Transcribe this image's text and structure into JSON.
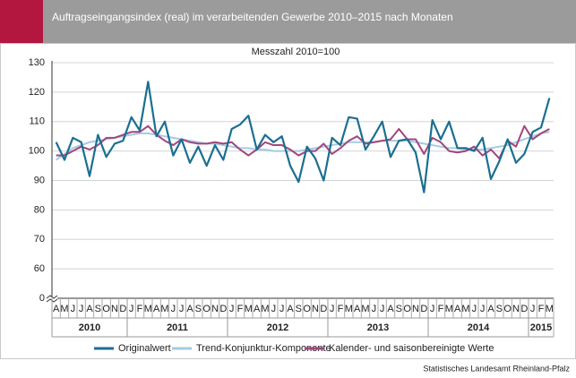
{
  "chart_data": {
    "type": "line",
    "title": "Auftragseingangsindex (real) im verarbeitenden Gewerbe 2010–2015 nach Monaten",
    "subtitle": "Messzahl 2010=100",
    "source": "Statistisches Landesamt Rheinland-Pfalz",
    "categories": [
      "A",
      "M",
      "J",
      "J",
      "A",
      "S",
      "O",
      "N",
      "D",
      "J",
      "F",
      "M",
      "A",
      "M",
      "J",
      "J",
      "A",
      "S",
      "O",
      "N",
      "D",
      "J",
      "F",
      "M",
      "A",
      "M",
      "J",
      "J",
      "A",
      "S",
      "O",
      "N",
      "D",
      "J",
      "F",
      "M",
      "A",
      "M",
      "J",
      "J",
      "A",
      "S",
      "O",
      "N",
      "D",
      "J",
      "F",
      "M",
      "A",
      "M",
      "J",
      "J",
      "A",
      "S",
      "O",
      "N",
      "D",
      "J",
      "F",
      "M"
    ],
    "years": [
      "2010",
      "2011",
      "2012",
      "2013",
      "2014",
      "2015"
    ],
    "ylim": [
      0,
      130
    ],
    "y_break": [
      0,
      50
    ],
    "yticks": [
      0,
      60,
      70,
      80,
      90,
      100,
      110,
      120,
      130
    ],
    "grid": true,
    "legend": "bottom",
    "series": [
      {
        "name": "Originalwert",
        "color": "#1b6f91",
        "values": [
          103,
          97,
          104.5,
          103,
          91.5,
          105.5,
          98,
          102.5,
          103.5,
          111.5,
          107,
          123.5,
          105,
          110,
          98.5,
          104,
          96,
          101.5,
          95,
          102,
          97,
          107.5,
          109,
          112,
          100.5,
          105.5,
          103,
          105,
          95,
          89.5,
          101.5,
          97.5,
          90,
          104.5,
          102,
          111.5,
          111,
          100.5,
          105,
          110,
          98,
          103.5,
          104,
          99.5,
          86,
          110.5,
          104,
          110,
          101,
          101,
          100,
          104.5,
          90.5,
          96.5,
          104,
          96,
          99,
          106.5,
          108,
          118
        ]
      },
      {
        "name": "Trend-Konjunktur-Komponente",
        "color": "#a3cbe2",
        "values": [
          97,
          99,
          101,
          102,
          103,
          103.5,
          104,
          104.5,
          105,
          105.5,
          106,
          106,
          105.5,
          105,
          104.5,
          104,
          103.5,
          103,
          102.5,
          102.5,
          102,
          101.5,
          101,
          101,
          100.5,
          100.5,
          100,
          100,
          100,
          100,
          100.5,
          101,
          101.5,
          102,
          102.5,
          103,
          103,
          103,
          103,
          103.5,
          103.5,
          103.5,
          103.5,
          103,
          102.5,
          102,
          101.5,
          101,
          101,
          100.5,
          100.5,
          100.5,
          101,
          101.5,
          102,
          103,
          104,
          105,
          106,
          106.5
        ]
      },
      {
        "name": "Kalender- und saisonbereinigte Werte",
        "color": "#a2457e",
        "values": [
          98.5,
          98.5,
          100,
          101.5,
          100.5,
          102,
          104.5,
          104.5,
          105.5,
          106.5,
          106.5,
          108.5,
          105.5,
          103.5,
          102,
          104,
          103,
          102.5,
          102.5,
          103,
          102.5,
          103,
          100.5,
          98.5,
          100.5,
          103,
          102,
          102,
          100.5,
          98.5,
          100,
          100,
          102.5,
          99,
          101,
          103.5,
          105,
          102.5,
          103,
          103.5,
          104,
          107.5,
          104,
          104,
          99,
          104.5,
          103,
          100,
          99.5,
          100,
          101.5,
          98.5,
          100.5,
          97.5,
          103.5,
          101.5,
          108.5,
          104,
          106,
          107.5
        ]
      }
    ]
  }
}
